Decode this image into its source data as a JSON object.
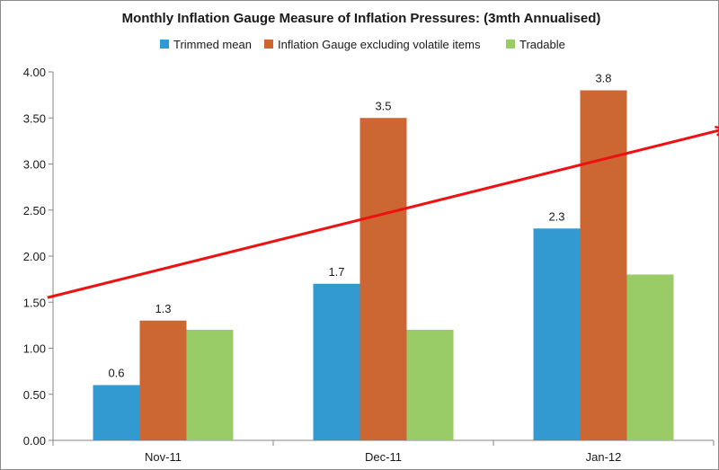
{
  "chart_data": {
    "type": "bar",
    "title": "Monthly Inflation Gauge Measure of Inflation Pressures: (3mth Annualised)",
    "categories": [
      "Nov-11",
      "Dec-11",
      "Jan-12"
    ],
    "series": [
      {
        "name": "Trimmed mean",
        "values": [
          0.6,
          1.7,
          2.3
        ],
        "color": "#3399d1",
        "labels": [
          "0.6",
          "1.7",
          "2.3"
        ]
      },
      {
        "name": "Inflation Gauge excluding volatile items",
        "values": [
          1.3,
          3.5,
          3.8
        ],
        "color": "#cc6633",
        "labels": [
          "1.3",
          "3.5",
          "3.8"
        ]
      },
      {
        "name": "Tradable",
        "values": [
          1.2,
          1.2,
          1.8
        ],
        "color": "#99cc66",
        "labels": [
          "",
          "",
          ""
        ]
      }
    ],
    "ylim": [
      0,
      4
    ],
    "yticks": [
      "0.00",
      "0.50",
      "1.00",
      "1.50",
      "2.00",
      "2.50",
      "3.00",
      "3.50",
      "4.00"
    ],
    "ytick_values": [
      0,
      0.5,
      1,
      1.5,
      2,
      2.5,
      3,
      3.5,
      4
    ],
    "legend_position": "top",
    "grid": false,
    "annotation": {
      "type": "trend-arrow",
      "color": "#ee1111",
      "start": {
        "category_position": -0.025,
        "value": 1.55
      },
      "end": {
        "category_position": 3.05,
        "value": 3.38
      }
    }
  }
}
